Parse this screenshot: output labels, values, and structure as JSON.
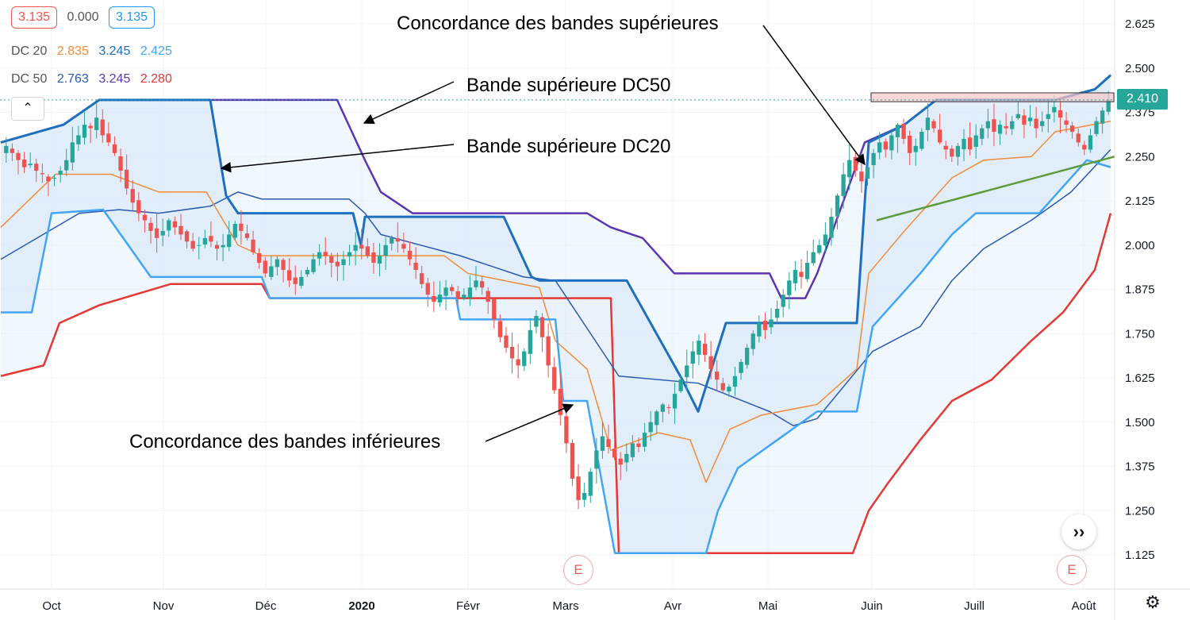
{
  "legend": {
    "price": {
      "v1": "3.135",
      "v2": "0.000",
      "v3": "3.135"
    },
    "dc20": {
      "label": "DC 20",
      "upper": "2.835",
      "middle": "3.245",
      "lower": "2.425"
    },
    "dc50": {
      "label": "DC 50",
      "upper": "2.763",
      "middle": "3.245",
      "lower": "2.280"
    }
  },
  "colors": {
    "up": "#26a69a",
    "down": "#ef5350",
    "dc20_band": "#1e6fbf",
    "dc20_lower": "#42a5f5",
    "dc20_mid": "#f08c3a",
    "dc50_upper": "#5e35b1",
    "dc50_mid": "#2a5ab0",
    "dc50_lower": "#e53935",
    "fill": "#e3f0fc",
    "trendline": "#5b9b3a",
    "resistance": "#f6c6c6"
  },
  "annotations": {
    "top_right": "Concordance des bandes supérieures",
    "dc50": "Bande supérieure DC50",
    "dc20": "Bande supérieure DC20",
    "lower": "Concordance des bandes inférieures"
  },
  "price_tag": "2.410",
  "collapse_icon": "chevron-up-icon",
  "nav_icon": "double-chevron-right-icon",
  "event_markers": [
    "E",
    "E"
  ],
  "chart_data": {
    "type": "candlestick",
    "x_ticks": [
      "Oct",
      "Nov",
      "Déc",
      "2020",
      "Févr",
      "Mars",
      "Avr",
      "Mai",
      "Juin",
      "Juill",
      "Août"
    ],
    "y_ticks": [
      "2.625",
      "2.500",
      "2.375",
      "2.250",
      "2.125",
      "2.000",
      "1.875",
      "1.750",
      "1.625",
      "1.500",
      "1.375",
      "1.250",
      "1.125"
    ],
    "ylim": [
      1.1,
      2.66
    ],
    "last_price": 2.41,
    "closes": [
      2.28,
      2.26,
      2.24,
      2.22,
      2.23,
      2.21,
      2.2,
      2.18,
      2.19,
      2.21,
      2.24,
      2.29,
      2.31,
      2.34,
      2.33,
      2.36,
      2.31,
      2.29,
      2.26,
      2.21,
      2.16,
      2.12,
      2.09,
      2.07,
      2.04,
      2.02,
      2.04,
      2.07,
      2.05,
      2.03,
      2.01,
      1.99,
      2.0,
      2.02,
      2.01,
      1.99,
      2.0,
      2.03,
      2.06,
      2.04,
      2.02,
      1.98,
      1.95,
      1.92,
      1.94,
      1.96,
      1.93,
      1.9,
      1.89,
      1.91,
      1.93,
      1.96,
      1.98,
      1.97,
      1.95,
      1.94,
      1.96,
      1.98,
      2.0,
      1.99,
      1.97,
      1.95,
      1.97,
      2.0,
      2.02,
      2.01,
      1.99,
      1.96,
      1.93,
      1.89,
      1.86,
      1.84,
      1.86,
      1.88,
      1.87,
      1.85,
      1.86,
      1.88,
      1.9,
      1.88,
      1.84,
      1.79,
      1.74,
      1.71,
      1.68,
      1.66,
      1.7,
      1.76,
      1.8,
      1.74,
      1.66,
      1.59,
      1.52,
      1.44,
      1.34,
      1.28,
      1.3,
      1.36,
      1.42,
      1.46,
      1.43,
      1.4,
      1.38,
      1.41,
      1.44,
      1.43,
      1.47,
      1.5,
      1.53,
      1.55,
      1.54,
      1.58,
      1.62,
      1.66,
      1.7,
      1.73,
      1.69,
      1.65,
      1.62,
      1.59,
      1.6,
      1.63,
      1.67,
      1.71,
      1.75,
      1.78,
      1.76,
      1.79,
      1.82,
      1.86,
      1.9,
      1.93,
      1.91,
      1.95,
      1.98,
      2.0,
      2.03,
      2.08,
      2.14,
      2.2,
      2.24,
      2.21,
      2.18,
      2.22,
      2.26,
      2.29,
      2.27,
      2.31,
      2.34,
      2.3,
      2.26,
      2.28,
      2.32,
      2.36,
      2.33,
      2.29,
      2.27,
      2.25,
      2.28,
      2.3,
      2.27,
      2.31,
      2.33,
      2.35,
      2.32,
      2.34,
      2.33,
      2.35,
      2.37,
      2.34,
      2.36,
      2.33,
      2.35,
      2.37,
      2.39,
      2.36,
      2.34,
      2.32,
      2.29,
      2.27,
      2.31,
      2.35,
      2.38,
      2.41
    ],
    "dc20": {
      "upper": [
        [
          1,
          2.29
        ],
        [
          80,
          2.34
        ],
        [
          125,
          2.41
        ],
        [
          265,
          2.41
        ],
        [
          285,
          2.14
        ],
        [
          300,
          2.09
        ],
        [
          445,
          2.09
        ],
        [
          455,
          2.0
        ],
        [
          460,
          2.08
        ],
        [
          635,
          2.08
        ],
        [
          670,
          1.91
        ],
        [
          680,
          1.9
        ],
        [
          790,
          1.9
        ],
        [
          860,
          1.62
        ],
        [
          880,
          1.53
        ],
        [
          915,
          1.78
        ],
        [
          1080,
          1.78
        ],
        [
          1095,
          2.29
        ],
        [
          1140,
          2.34
        ],
        [
          1180,
          2.41
        ],
        [
          1310,
          2.41
        ],
        [
          1330,
          2.41
        ],
        [
          1380,
          2.44
        ],
        [
          1400,
          2.48
        ]
      ],
      "lower": [
        [
          1,
          1.81
        ],
        [
          40,
          1.81
        ],
        [
          65,
          2.09
        ],
        [
          130,
          2.1
        ],
        [
          190,
          1.91
        ],
        [
          330,
          1.91
        ],
        [
          340,
          1.85
        ],
        [
          575,
          1.85
        ],
        [
          580,
          1.79
        ],
        [
          700,
          1.79
        ],
        [
          710,
          1.56
        ],
        [
          740,
          1.56
        ],
        [
          775,
          1.13
        ],
        [
          890,
          1.13
        ],
        [
          905,
          1.25
        ],
        [
          930,
          1.37
        ],
        [
          980,
          1.45
        ],
        [
          1030,
          1.53
        ],
        [
          1080,
          1.53
        ],
        [
          1100,
          1.77
        ],
        [
          1160,
          1.92
        ],
        [
          1200,
          2.03
        ],
        [
          1230,
          2.09
        ],
        [
          1310,
          2.09
        ],
        [
          1370,
          2.24
        ],
        [
          1400,
          2.22
        ]
      ],
      "middle": [
        [
          1,
          2.05
        ],
        [
          70,
          2.2
        ],
        [
          140,
          2.2
        ],
        [
          200,
          2.15
        ],
        [
          260,
          2.15
        ],
        [
          300,
          2.0
        ],
        [
          330,
          1.97
        ],
        [
          450,
          1.97
        ],
        [
          470,
          1.97
        ],
        [
          560,
          1.97
        ],
        [
          590,
          1.92
        ],
        [
          680,
          1.88
        ],
        [
          700,
          1.73
        ],
        [
          740,
          1.65
        ],
        [
          770,
          1.42
        ],
        [
          830,
          1.47
        ],
        [
          870,
          1.45
        ],
        [
          890,
          1.33
        ],
        [
          920,
          1.48
        ],
        [
          960,
          1.52
        ],
        [
          1030,
          1.55
        ],
        [
          1080,
          1.65
        ],
        [
          1095,
          1.92
        ],
        [
          1140,
          2.04
        ],
        [
          1200,
          2.19
        ],
        [
          1240,
          2.24
        ],
        [
          1300,
          2.25
        ],
        [
          1330,
          2.32
        ],
        [
          1400,
          2.35
        ]
      ]
    },
    "dc50": {
      "upper": [
        [
          1,
          2.29
        ],
        [
          80,
          2.34
        ],
        [
          125,
          2.41
        ],
        [
          425,
          2.41
        ],
        [
          460,
          2.24
        ],
        [
          480,
          2.15
        ],
        [
          520,
          2.09
        ],
        [
          740,
          2.09
        ],
        [
          770,
          2.05
        ],
        [
          810,
          2.02
        ],
        [
          850,
          1.92
        ],
        [
          970,
          1.92
        ],
        [
          985,
          1.85
        ],
        [
          1015,
          1.85
        ],
        [
          1030,
          1.92
        ],
        [
          1090,
          2.29
        ],
        [
          1140,
          2.34
        ],
        [
          1180,
          2.41
        ],
        [
          1310,
          2.41
        ],
        [
          1330,
          2.41
        ],
        [
          1380,
          2.44
        ],
        [
          1400,
          2.48
        ]
      ],
      "lower": [
        [
          1,
          1.63
        ],
        [
          55,
          1.66
        ],
        [
          75,
          1.78
        ],
        [
          125,
          1.83
        ],
        [
          215,
          1.89
        ],
        [
          330,
          1.89
        ],
        [
          340,
          1.85
        ],
        [
          770,
          1.85
        ],
        [
          780,
          1.13
        ],
        [
          1075,
          1.13
        ],
        [
          1095,
          1.25
        ],
        [
          1120,
          1.33
        ],
        [
          1160,
          1.45
        ],
        [
          1200,
          1.56
        ],
        [
          1250,
          1.62
        ],
        [
          1300,
          1.73
        ],
        [
          1340,
          1.81
        ],
        [
          1380,
          1.93
        ],
        [
          1400,
          2.09
        ]
      ],
      "middle": [
        [
          1,
          1.96
        ],
        [
          100,
          2.09
        ],
        [
          150,
          2.1
        ],
        [
          200,
          2.09
        ],
        [
          265,
          2.11
        ],
        [
          300,
          2.15
        ],
        [
          330,
          2.13
        ],
        [
          440,
          2.13
        ],
        [
          460,
          2.09
        ],
        [
          480,
          2.03
        ],
        [
          580,
          1.97
        ],
        [
          660,
          1.91
        ],
        [
          700,
          1.9
        ],
        [
          780,
          1.63
        ],
        [
          880,
          1.61
        ],
        [
          970,
          1.53
        ],
        [
          1000,
          1.49
        ],
        [
          1030,
          1.51
        ],
        [
          1100,
          1.7
        ],
        [
          1160,
          1.77
        ],
        [
          1200,
          1.9
        ],
        [
          1240,
          1.99
        ],
        [
          1300,
          2.07
        ],
        [
          1350,
          2.15
        ],
        [
          1400,
          2.27
        ]
      ]
    },
    "trendline": [
      [
        1105,
        2.07
      ],
      [
        1405,
        2.25
      ]
    ],
    "resistance_zone": [
      2.405,
      2.43
    ]
  }
}
